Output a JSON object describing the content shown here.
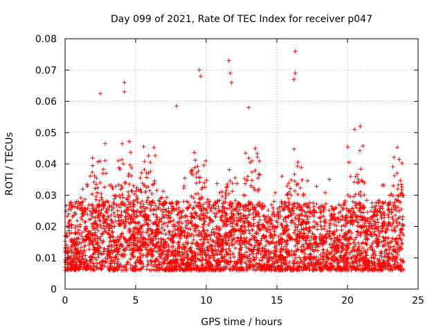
{
  "chart_data": {
    "type": "scatter",
    "title": "Day 099 of 2021, Rate Of TEC Index for receiver p047",
    "xlabel": "GPS time / hours",
    "ylabel": "ROTI / TECUs",
    "xlim": [
      0,
      25
    ],
    "ylim": [
      0,
      0.08
    ],
    "xticks": [
      0,
      5,
      10,
      15,
      20,
      25
    ],
    "yticks": [
      0,
      0.01,
      0.02,
      0.03,
      0.04,
      0.05,
      0.06,
      0.07,
      0.08
    ],
    "xtick_labels": [
      "0",
      "5",
      "10",
      "15",
      "20",
      "25"
    ],
    "ytick_labels": [
      "0",
      "0.01",
      "0.02",
      "0.03",
      "0.04",
      "0.05",
      "0.06",
      "0.07",
      "0.08"
    ],
    "grid": true,
    "marker": "+",
    "color": "#ff0000",
    "series": [
      {
        "name": "ROTI",
        "x_range": [
          0,
          24
        ],
        "typical_range": [
          0.005,
          0.03
        ],
        "notable_points": [
          {
            "x": 2.5,
            "y": 0.0625
          },
          {
            "x": 4.2,
            "y": 0.066
          },
          {
            "x": 4.2,
            "y": 0.063
          },
          {
            "x": 7.9,
            "y": 0.0585
          },
          {
            "x": 9.5,
            "y": 0.07
          },
          {
            "x": 9.6,
            "y": 0.068
          },
          {
            "x": 11.6,
            "y": 0.073
          },
          {
            "x": 11.7,
            "y": 0.069
          },
          {
            "x": 11.8,
            "y": 0.066
          },
          {
            "x": 13.0,
            "y": 0.058
          },
          {
            "x": 16.3,
            "y": 0.076
          },
          {
            "x": 16.3,
            "y": 0.069
          },
          {
            "x": 16.2,
            "y": 0.067
          },
          {
            "x": 20.5,
            "y": 0.051
          },
          {
            "x": 20.9,
            "y": 0.052
          }
        ]
      }
    ]
  }
}
